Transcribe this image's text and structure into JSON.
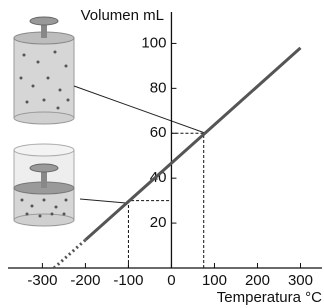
{
  "chart_data": {
    "type": "line",
    "y_label": "Volumen mL",
    "x_label": "Temperatura °C",
    "xlim": [
      -380,
      350
    ],
    "ylim": [
      0,
      114
    ],
    "xticks": [
      -300,
      -200,
      -100,
      0,
      100,
      200,
      300
    ],
    "yticks": [
      20,
      40,
      60,
      80,
      100
    ],
    "series": [
      {
        "color": "#555555",
        "dash": "dotted",
        "x": [
          -273,
          -200
        ],
        "values": [
          0,
          12.5
        ]
      },
      {
        "color": "#555555",
        "x": [
          -200,
          300
        ],
        "values": [
          12.5,
          98
        ]
      }
    ],
    "guides": {
      "x": [
        -100,
        75
      ],
      "values": [
        30,
        60
      ]
    }
  }
}
